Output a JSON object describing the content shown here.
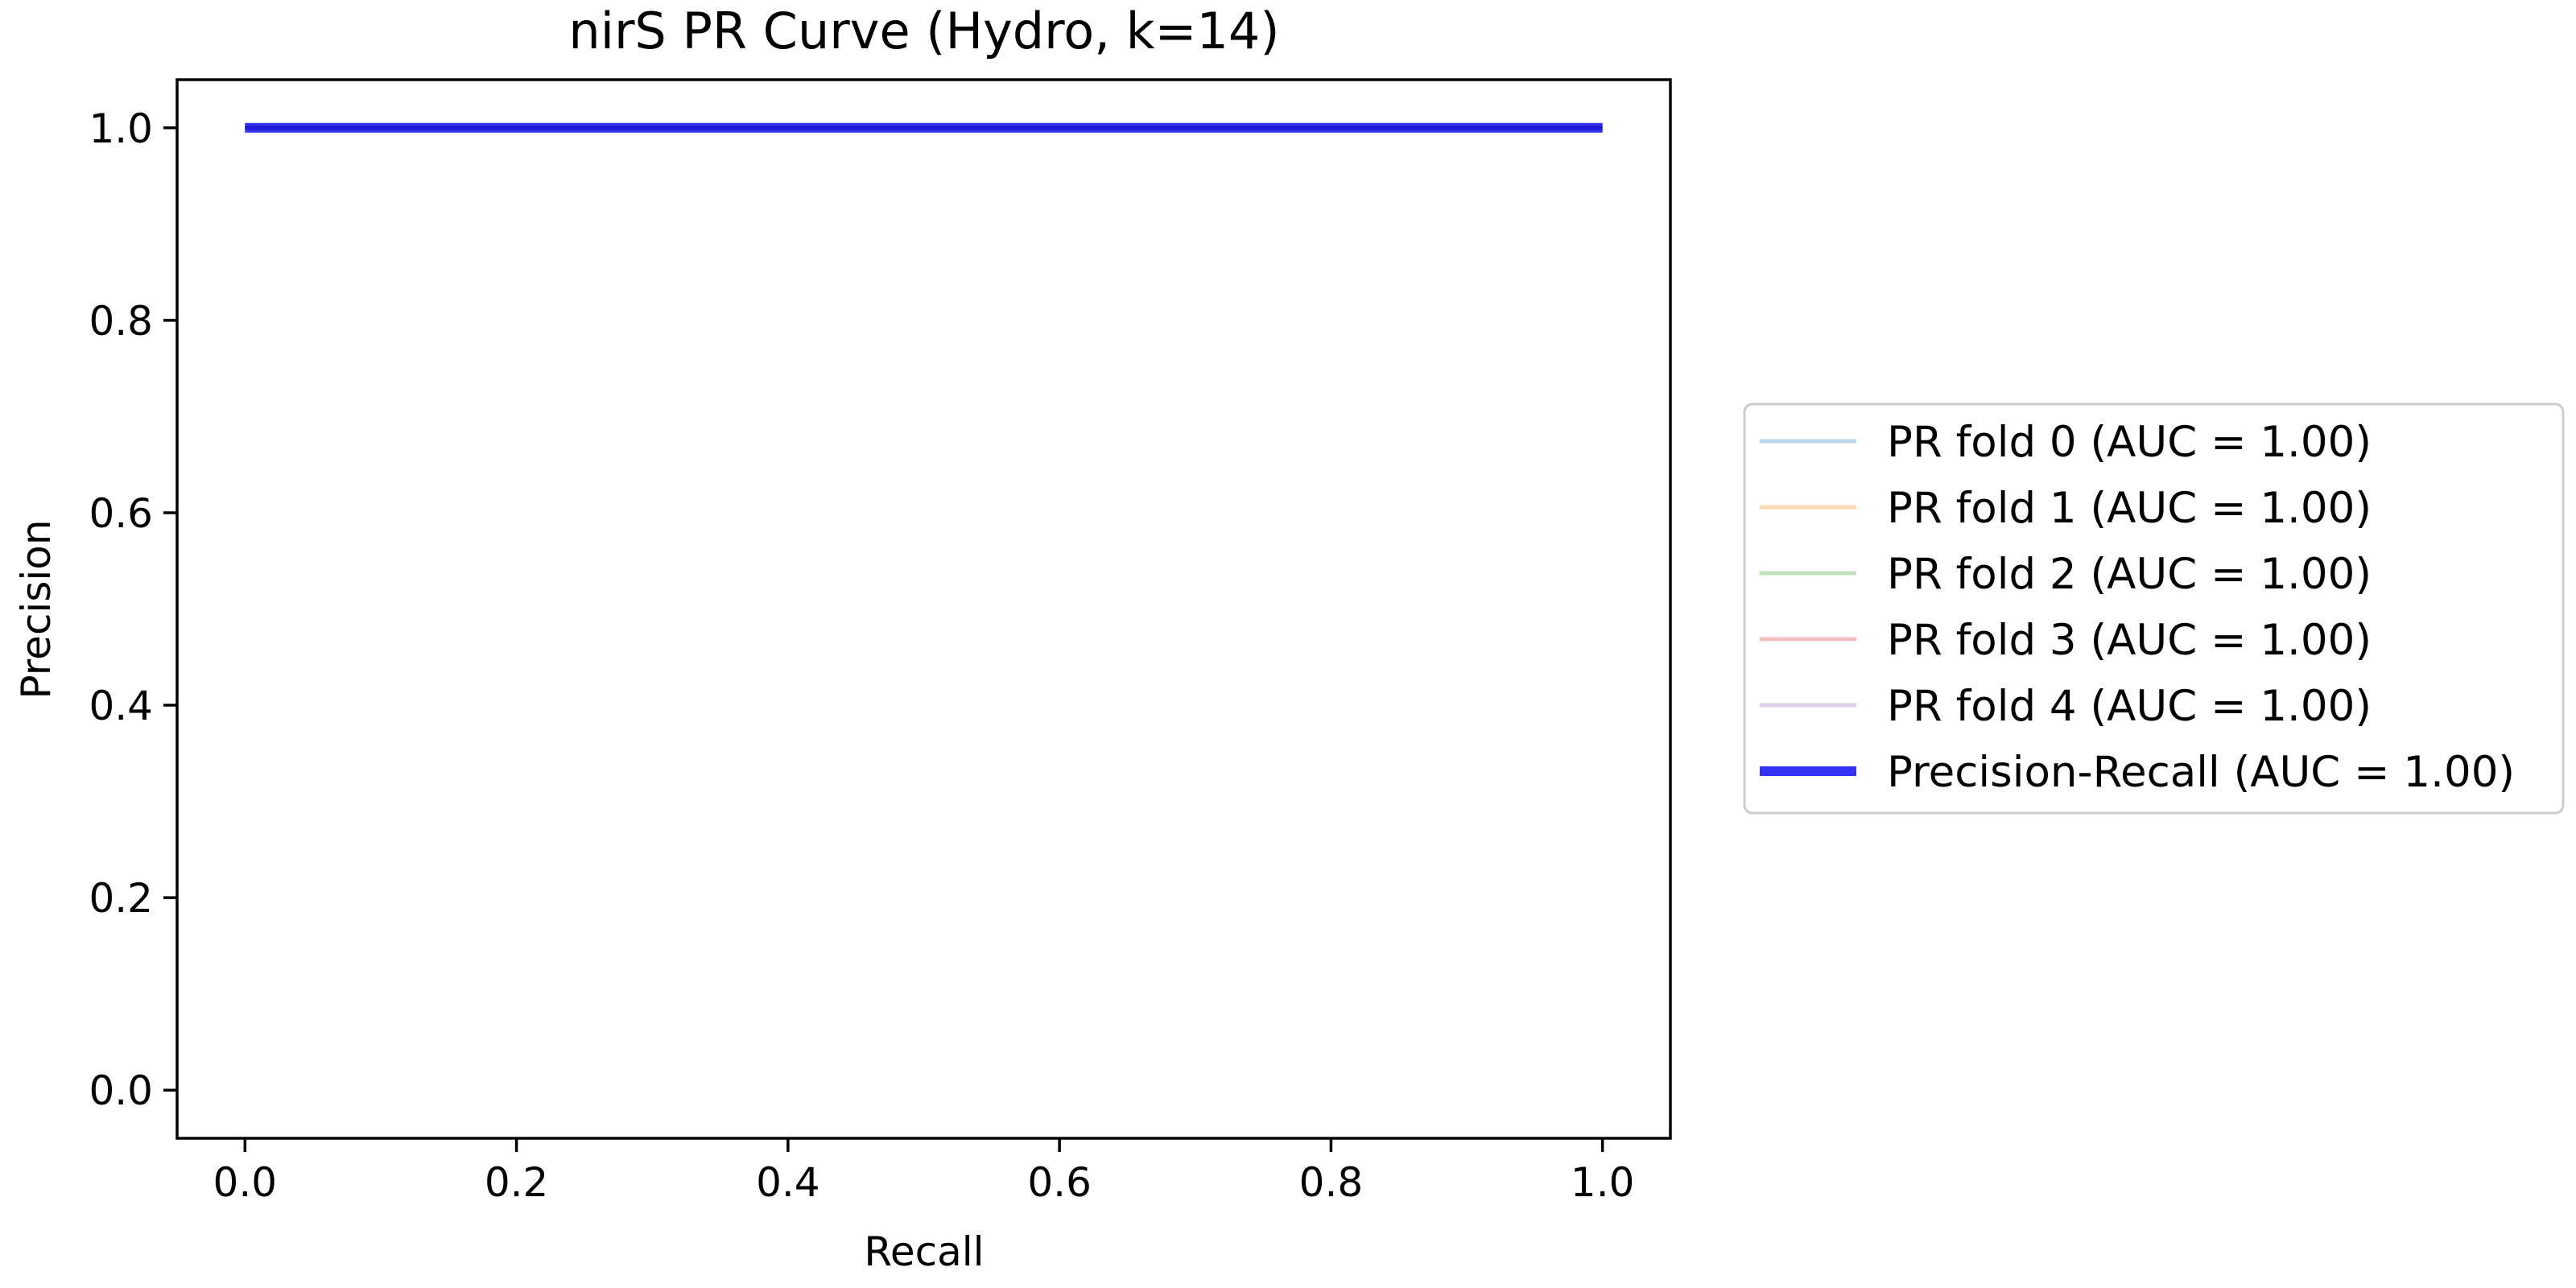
{
  "chart_data": {
    "type": "line",
    "title": "nirS PR Curve (Hydro, k=14)",
    "xlabel": "Recall",
    "ylabel": "Precision",
    "xlim": [
      -0.05,
      1.05
    ],
    "ylim": [
      -0.05,
      1.05
    ],
    "xticks": [
      0.0,
      0.2,
      0.4,
      0.6,
      0.8,
      1.0
    ],
    "yticks": [
      0.0,
      0.2,
      0.4,
      0.6,
      0.8,
      1.0
    ],
    "xtick_labels": [
      "0.0",
      "0.2",
      "0.4",
      "0.6",
      "0.8",
      "1.0"
    ],
    "ytick_labels": [
      "0.0",
      "0.2",
      "0.4",
      "0.6",
      "0.8",
      "1.0"
    ],
    "grid": false,
    "legend_position": "outside right, centered",
    "series": [
      {
        "name": "PR fold 0 (AUC = 1.00)",
        "color": "#1f77b4",
        "opacity": 0.3,
        "x": [
          0.0,
          1.0
        ],
        "y": [
          1.0,
          1.0
        ]
      },
      {
        "name": "PR fold 1 (AUC = 1.00)",
        "color": "#ff7f0e",
        "opacity": 0.3,
        "x": [
          0.0,
          1.0
        ],
        "y": [
          1.0,
          1.0
        ]
      },
      {
        "name": "PR fold 2 (AUC = 1.00)",
        "color": "#2ca02c",
        "opacity": 0.3,
        "x": [
          0.0,
          1.0
        ],
        "y": [
          1.0,
          1.0
        ]
      },
      {
        "name": "PR fold 3 (AUC = 1.00)",
        "color": "#d62728",
        "opacity": 0.3,
        "x": [
          0.0,
          1.0
        ],
        "y": [
          1.0,
          1.0
        ]
      },
      {
        "name": "PR fold 4 (AUC = 1.00)",
        "color": "#9467bd",
        "opacity": 0.3,
        "x": [
          0.0,
          1.0
        ],
        "y": [
          1.0,
          1.0
        ]
      },
      {
        "name": "Precision-Recall (AUC = 1.00)",
        "color": "#0000ee",
        "opacity": 0.8,
        "bold": true,
        "x": [
          0.0,
          1.0
        ],
        "y": [
          1.0,
          1.0
        ]
      }
    ]
  }
}
